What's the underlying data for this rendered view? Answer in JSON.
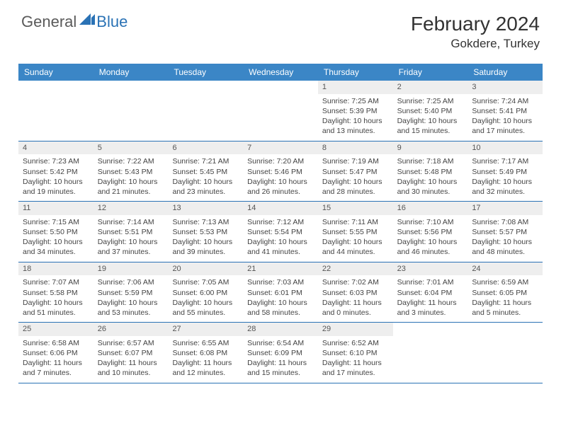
{
  "logo": {
    "text1": "General",
    "text2": "Blue"
  },
  "title": "February 2024",
  "location": "Gokdere, Turkey",
  "colors": {
    "header_bg": "#3b86c6",
    "header_text": "#ffffff",
    "daynum_bg": "#eeeeee",
    "border": "#2a72b5",
    "logo_gray": "#5a5a5a",
    "logo_blue": "#2a72b5"
  },
  "dayNames": [
    "Sunday",
    "Monday",
    "Tuesday",
    "Wednesday",
    "Thursday",
    "Friday",
    "Saturday"
  ],
  "weeks": [
    [
      null,
      null,
      null,
      null,
      {
        "n": "1",
        "sr": "Sunrise: 7:25 AM",
        "ss": "Sunset: 5:39 PM",
        "d1": "Daylight: 10 hours",
        "d2": "and 13 minutes."
      },
      {
        "n": "2",
        "sr": "Sunrise: 7:25 AM",
        "ss": "Sunset: 5:40 PM",
        "d1": "Daylight: 10 hours",
        "d2": "and 15 minutes."
      },
      {
        "n": "3",
        "sr": "Sunrise: 7:24 AM",
        "ss": "Sunset: 5:41 PM",
        "d1": "Daylight: 10 hours",
        "d2": "and 17 minutes."
      }
    ],
    [
      {
        "n": "4",
        "sr": "Sunrise: 7:23 AM",
        "ss": "Sunset: 5:42 PM",
        "d1": "Daylight: 10 hours",
        "d2": "and 19 minutes."
      },
      {
        "n": "5",
        "sr": "Sunrise: 7:22 AM",
        "ss": "Sunset: 5:43 PM",
        "d1": "Daylight: 10 hours",
        "d2": "and 21 minutes."
      },
      {
        "n": "6",
        "sr": "Sunrise: 7:21 AM",
        "ss": "Sunset: 5:45 PM",
        "d1": "Daylight: 10 hours",
        "d2": "and 23 minutes."
      },
      {
        "n": "7",
        "sr": "Sunrise: 7:20 AM",
        "ss": "Sunset: 5:46 PM",
        "d1": "Daylight: 10 hours",
        "d2": "and 26 minutes."
      },
      {
        "n": "8",
        "sr": "Sunrise: 7:19 AM",
        "ss": "Sunset: 5:47 PM",
        "d1": "Daylight: 10 hours",
        "d2": "and 28 minutes."
      },
      {
        "n": "9",
        "sr": "Sunrise: 7:18 AM",
        "ss": "Sunset: 5:48 PM",
        "d1": "Daylight: 10 hours",
        "d2": "and 30 minutes."
      },
      {
        "n": "10",
        "sr": "Sunrise: 7:17 AM",
        "ss": "Sunset: 5:49 PM",
        "d1": "Daylight: 10 hours",
        "d2": "and 32 minutes."
      }
    ],
    [
      {
        "n": "11",
        "sr": "Sunrise: 7:15 AM",
        "ss": "Sunset: 5:50 PM",
        "d1": "Daylight: 10 hours",
        "d2": "and 34 minutes."
      },
      {
        "n": "12",
        "sr": "Sunrise: 7:14 AM",
        "ss": "Sunset: 5:51 PM",
        "d1": "Daylight: 10 hours",
        "d2": "and 37 minutes."
      },
      {
        "n": "13",
        "sr": "Sunrise: 7:13 AM",
        "ss": "Sunset: 5:53 PM",
        "d1": "Daylight: 10 hours",
        "d2": "and 39 minutes."
      },
      {
        "n": "14",
        "sr": "Sunrise: 7:12 AM",
        "ss": "Sunset: 5:54 PM",
        "d1": "Daylight: 10 hours",
        "d2": "and 41 minutes."
      },
      {
        "n": "15",
        "sr": "Sunrise: 7:11 AM",
        "ss": "Sunset: 5:55 PM",
        "d1": "Daylight: 10 hours",
        "d2": "and 44 minutes."
      },
      {
        "n": "16",
        "sr": "Sunrise: 7:10 AM",
        "ss": "Sunset: 5:56 PM",
        "d1": "Daylight: 10 hours",
        "d2": "and 46 minutes."
      },
      {
        "n": "17",
        "sr": "Sunrise: 7:08 AM",
        "ss": "Sunset: 5:57 PM",
        "d1": "Daylight: 10 hours",
        "d2": "and 48 minutes."
      }
    ],
    [
      {
        "n": "18",
        "sr": "Sunrise: 7:07 AM",
        "ss": "Sunset: 5:58 PM",
        "d1": "Daylight: 10 hours",
        "d2": "and 51 minutes."
      },
      {
        "n": "19",
        "sr": "Sunrise: 7:06 AM",
        "ss": "Sunset: 5:59 PM",
        "d1": "Daylight: 10 hours",
        "d2": "and 53 minutes."
      },
      {
        "n": "20",
        "sr": "Sunrise: 7:05 AM",
        "ss": "Sunset: 6:00 PM",
        "d1": "Daylight: 10 hours",
        "d2": "and 55 minutes."
      },
      {
        "n": "21",
        "sr": "Sunrise: 7:03 AM",
        "ss": "Sunset: 6:01 PM",
        "d1": "Daylight: 10 hours",
        "d2": "and 58 minutes."
      },
      {
        "n": "22",
        "sr": "Sunrise: 7:02 AM",
        "ss": "Sunset: 6:03 PM",
        "d1": "Daylight: 11 hours",
        "d2": "and 0 minutes."
      },
      {
        "n": "23",
        "sr": "Sunrise: 7:01 AM",
        "ss": "Sunset: 6:04 PM",
        "d1": "Daylight: 11 hours",
        "d2": "and 3 minutes."
      },
      {
        "n": "24",
        "sr": "Sunrise: 6:59 AM",
        "ss": "Sunset: 6:05 PM",
        "d1": "Daylight: 11 hours",
        "d2": "and 5 minutes."
      }
    ],
    [
      {
        "n": "25",
        "sr": "Sunrise: 6:58 AM",
        "ss": "Sunset: 6:06 PM",
        "d1": "Daylight: 11 hours",
        "d2": "and 7 minutes."
      },
      {
        "n": "26",
        "sr": "Sunrise: 6:57 AM",
        "ss": "Sunset: 6:07 PM",
        "d1": "Daylight: 11 hours",
        "d2": "and 10 minutes."
      },
      {
        "n": "27",
        "sr": "Sunrise: 6:55 AM",
        "ss": "Sunset: 6:08 PM",
        "d1": "Daylight: 11 hours",
        "d2": "and 12 minutes."
      },
      {
        "n": "28",
        "sr": "Sunrise: 6:54 AM",
        "ss": "Sunset: 6:09 PM",
        "d1": "Daylight: 11 hours",
        "d2": "and 15 minutes."
      },
      {
        "n": "29",
        "sr": "Sunrise: 6:52 AM",
        "ss": "Sunset: 6:10 PM",
        "d1": "Daylight: 11 hours",
        "d2": "and 17 minutes."
      },
      null,
      null
    ]
  ]
}
